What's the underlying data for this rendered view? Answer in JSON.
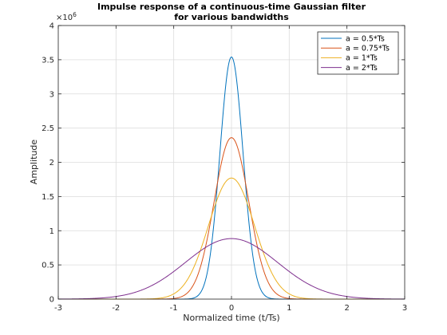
{
  "chart_data": {
    "type": "line",
    "title": [
      "Impulse response of a continuous-time Gaussian filter",
      "for various bandwidths"
    ],
    "xlabel": "Normalized time (t/Ts)",
    "ylabel": "Amplitude",
    "xlim": [
      -3,
      3
    ],
    "ylim": [
      0,
      4000000
    ],
    "x_ticks": [
      -3,
      -2,
      -1,
      0,
      1,
      2,
      3
    ],
    "y_ticks": [
      0,
      0.5,
      1,
      1.5,
      2,
      2.5,
      3,
      3.5,
      4
    ],
    "y_exponent_label": "×10",
    "y_exponent_power": "6",
    "grid": true,
    "legend_position": "top-right",
    "series": [
      {
        "name": "a = 0.5*Ts",
        "a": 0.5,
        "peak": 3540000,
        "color": "#0072BD"
      },
      {
        "name": "a = 0.75*Ts",
        "a": 0.75,
        "peak": 2360000,
        "color": "#D95319"
      },
      {
        "name": "a = 1*Ts",
        "a": 1,
        "peak": 1770000,
        "color": "#EDB120"
      },
      {
        "name": "a = 2*Ts",
        "a": 2,
        "peak": 885000,
        "color": "#7E2F8E"
      }
    ]
  }
}
